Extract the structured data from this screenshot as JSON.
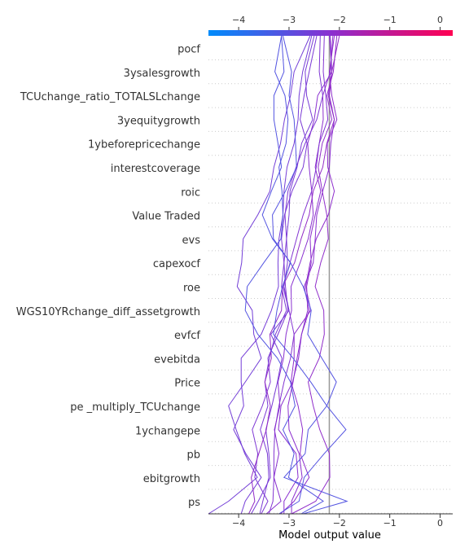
{
  "chart_data": {
    "type": "line",
    "title": "",
    "xlabel": "Model output value",
    "ylabel": "",
    "xlim": [
      -4.6,
      0.25
    ],
    "xticks": [
      -4,
      -3,
      -2,
      -1,
      0
    ],
    "xtick_labels": [
      "−4",
      "−3",
      "−2",
      "−1",
      "0"
    ],
    "base_value": -2.2,
    "features": [
      "pocf",
      "3ysalesgrowth",
      "TCUchange_ratio_TOTALSLchange",
      "3yequitygrowth",
      "1ybeforepricechange",
      "interestcoverage",
      "roic",
      "Value Traded",
      "evs",
      "capexocf",
      "roe",
      "WGS10YRchange_diff_assetgrowth",
      "evfcf",
      "evebitda",
      "Price",
      "pe _multiply_TCUchange",
      "1ychangepe",
      "pb",
      "ebitgrowth",
      "ps"
    ],
    "colorbar": {
      "colors": [
        "#008bfb",
        "#8a2fd0",
        "#ff0052"
      ],
      "range": [
        -4.6,
        0.25
      ]
    },
    "series": [
      {
        "values": [
          -2.13,
          -2.18,
          -2.33,
          -2.32,
          -2.4,
          -2.48,
          -2.37,
          -2.48,
          -2.58,
          -2.56,
          -2.65,
          -2.63,
          -2.75,
          -2.84,
          -2.92,
          -3.02,
          -3.0,
          -2.8,
          -2.74,
          -2.95,
          -2.95
        ]
      },
      {
        "values": [
          -2.18,
          -2.15,
          -2.22,
          -2.1,
          -2.17,
          -2.2,
          -2.33,
          -2.45,
          -2.48,
          -2.52,
          -2.7,
          -2.6,
          -2.75,
          -2.81,
          -2.93,
          -3.16,
          -3.21,
          -2.86,
          -2.82,
          -3.1,
          -3.1
        ]
      },
      {
        "values": [
          -2.05,
          -2.12,
          -2.25,
          -2.15,
          -2.34,
          -2.42,
          -2.34,
          -2.25,
          -2.22,
          -2.37,
          -2.48,
          -2.31,
          -2.3,
          -2.4,
          -2.62,
          -2.52,
          -2.39,
          -2.2,
          -2.19,
          -2.47,
          -2.95
        ]
      },
      {
        "values": [
          -2.1,
          -2.2,
          -2.15,
          -2.05,
          -2.24,
          -2.23,
          -2.1,
          -2.22,
          -2.46,
          -2.58,
          -2.67,
          -2.57,
          -2.9,
          -2.9,
          -2.96,
          -2.82,
          -2.73,
          -2.78,
          -2.6,
          -2.9,
          -3.17
        ]
      },
      {
        "values": [
          -2.3,
          -2.32,
          -2.27,
          -2.23,
          -2.4,
          -2.46,
          -2.55,
          -2.72,
          -2.85,
          -2.98,
          -3.12,
          -3.0,
          -2.9,
          -2.97,
          -3.1,
          -3.2,
          -3.28,
          -3.3,
          -3.3,
          -3.32,
          -3.4
        ]
      },
      {
        "values": [
          -2.2,
          -2.15,
          -2.43,
          -2.5,
          -2.63,
          -2.6,
          -2.55,
          -2.52,
          -2.62,
          -2.78,
          -2.96,
          -2.95,
          -3.06,
          -3.11,
          -3.22,
          -3.18,
          -3.29,
          -3.2,
          -3.3,
          -3.16,
          -3.45
        ]
      },
      {
        "values": [
          -2.38,
          -2.4,
          -2.33,
          -2.45,
          -2.68,
          -2.86,
          -3.02,
          -3.08,
          -3.05,
          -3.1,
          -3.07,
          -3.02,
          -3.22,
          -3.42,
          -3.37,
          -3.53,
          -3.73,
          -3.62,
          -3.68,
          -3.42,
          -3.55
        ]
      },
      {
        "values": [
          -2.45,
          -2.6,
          -2.7,
          -2.78,
          -2.64,
          -2.72,
          -2.94,
          -3.09,
          -3.15,
          -3.1,
          -3.15,
          -3.05,
          -3.27,
          -3.39,
          -3.48,
          -3.42,
          -3.57,
          -3.43,
          -3.4,
          -3.52,
          -3.58
        ]
      },
      {
        "values": [
          -2.5,
          -2.68,
          -2.65,
          -2.53,
          -2.75,
          -2.84,
          -2.98,
          -3.0,
          -3.05,
          -3.03,
          -3.1,
          -3.0,
          -3.36,
          -3.14,
          -3.23,
          -3.34,
          -3.46,
          -3.4,
          -3.37,
          -3.61,
          -3.75
        ]
      },
      {
        "values": [
          -2.55,
          -2.73,
          -2.8,
          -2.82,
          -2.9,
          -3.04,
          -3.1,
          -3.12,
          -3.2,
          -3.22,
          -3.21,
          -3.35,
          -3.55,
          -3.95,
          -3.95,
          -3.9,
          -4.1,
          -3.86,
          -3.55,
          -3.87,
          -3.95
        ]
      },
      {
        "values": [
          -2.58,
          -2.9,
          -2.97,
          -3.09,
          -3.17,
          -3.3,
          -3.38,
          -3.62,
          -3.91,
          -3.94,
          -4.03,
          -3.73,
          -3.7,
          -3.55,
          -3.87,
          -4.2,
          -4.05,
          -3.88,
          -3.63,
          -4.2,
          -4.6
        ]
      },
      {
        "values": [
          -2.0,
          -2.15,
          -2.2,
          -2.1,
          -2.25,
          -2.33,
          -2.52,
          -2.6,
          -2.76,
          -2.89,
          -3.13,
          -3.15,
          -3.38,
          -3.35,
          -3.48,
          -3.37,
          -3.45,
          -3.6,
          -3.75,
          -3.68,
          -3.8
        ]
      },
      {
        "values": [
          -3.15,
          -3.28,
          -3.08,
          -3.02,
          -3.06,
          -3.2,
          -3.14,
          -3.12,
          -3.16,
          -3.5,
          -3.83,
          -3.87,
          -3.62,
          -3.23,
          -2.97,
          -2.88,
          -3.12,
          -2.9,
          -3.01,
          -2.32,
          -2.76
        ]
      },
      {
        "values": [
          -3.15,
          -3.1,
          -3.3,
          -3.3,
          -3.22,
          -3.15,
          -3.35,
          -3.53,
          -3.33,
          -2.97,
          -3.13,
          -3.24,
          -3.31,
          -2.92,
          -2.57,
          -2.25,
          -2.62,
          -2.68,
          -3.1,
          -1.85,
          -2.72
        ]
      },
      {
        "values": [
          -3.12,
          -2.95,
          -3.0,
          -2.9,
          -2.87,
          -2.85,
          -3.07,
          -3.33,
          -3.31,
          -2.97,
          -2.72,
          -2.56,
          -2.63,
          -2.35,
          -2.06,
          -2.25,
          -1.87,
          -2.3,
          -2.7,
          -2.8,
          -3.2
        ]
      }
    ]
  }
}
